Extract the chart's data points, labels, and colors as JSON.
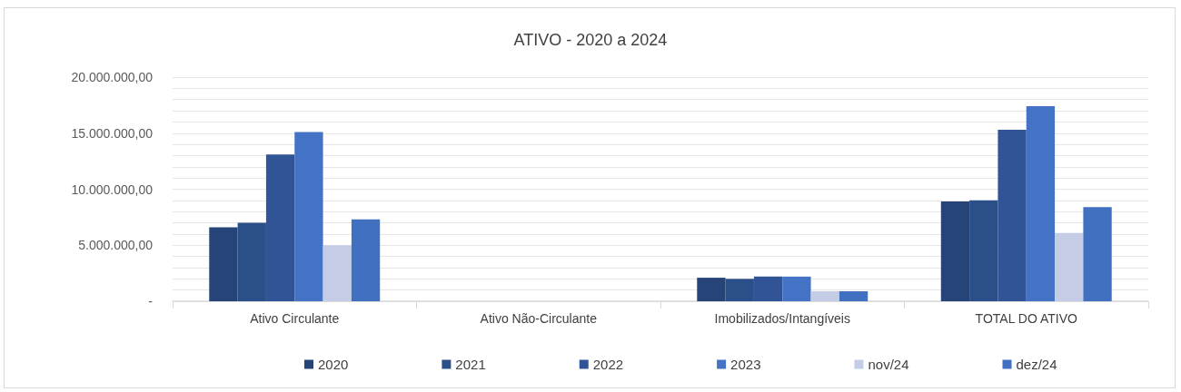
{
  "chart_data": {
    "type": "bar",
    "title": "ATIVO - 2020 a 2024",
    "categories": [
      "Ativo Circulante",
      "Ativo Não-Circulante",
      "Imobilizados/Intangíveis",
      "TOTAL DO ATIVO"
    ],
    "series": [
      {
        "name": "2020",
        "color": "#264478",
        "values": [
          6600000,
          0,
          2100000,
          8900000
        ]
      },
      {
        "name": "2021",
        "color": "#2b5089",
        "values": [
          7000000,
          0,
          2000000,
          9000000
        ]
      },
      {
        "name": "2022",
        "color": "#305496",
        "values": [
          13100000,
          0,
          2200000,
          15300000
        ]
      },
      {
        "name": "2023",
        "color": "#4472c4",
        "values": [
          15100000,
          0,
          2200000,
          17400000
        ]
      },
      {
        "name": "nov/24",
        "color": "#c5cce6",
        "values": [
          5000000,
          0,
          900000,
          6100000
        ]
      },
      {
        "name": "dez/24",
        "color": "#4270c0",
        "values": [
          7300000,
          0,
          900000,
          8400000
        ]
      }
    ],
    "ylim": [
      0,
      20000000
    ],
    "yticks": [
      {
        "value": 0,
        "label": "-"
      },
      {
        "value": 1000000,
        "label": null
      },
      {
        "value": 2000000,
        "label": null
      },
      {
        "value": 3000000,
        "label": null
      },
      {
        "value": 4000000,
        "label": null
      },
      {
        "value": 5000000,
        "label": "5.000.000,00"
      },
      {
        "value": 6000000,
        "label": null
      },
      {
        "value": 7000000,
        "label": null
      },
      {
        "value": 8000000,
        "label": null
      },
      {
        "value": 9000000,
        "label": null
      },
      {
        "value": 10000000,
        "label": "10.000.000,00"
      },
      {
        "value": 11000000,
        "label": null
      },
      {
        "value": 12000000,
        "label": null
      },
      {
        "value": 13000000,
        "label": null
      },
      {
        "value": 14000000,
        "label": null
      },
      {
        "value": 15000000,
        "label": "15.000.000,00"
      },
      {
        "value": 16000000,
        "label": null
      },
      {
        "value": 17000000,
        "label": null
      },
      {
        "value": 18000000,
        "label": null
      },
      {
        "value": 19000000,
        "label": null
      },
      {
        "value": 20000000,
        "label": "20.000.000,00"
      }
    ],
    "grid": "y",
    "legend": "bottom"
  }
}
